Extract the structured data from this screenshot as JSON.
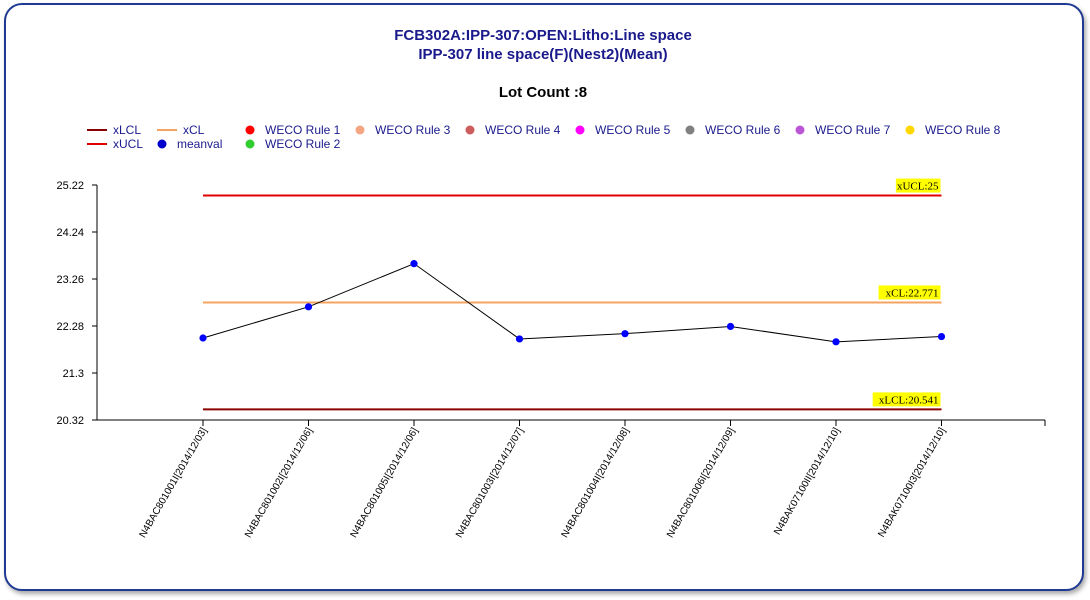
{
  "chart_data": {
    "type": "line",
    "title": "FCB302A:IPP-307:OPEN:Litho:Line space",
    "subtitle": "IPP-307 line space(F)(Nest2)(Mean)",
    "lot_count_label": "Lot Count :8",
    "categories": [
      "N4BAC801001I[2014/12/03]",
      "N4BAC801002I[2014/12/06]",
      "N4BAC801005I[2014/12/06]",
      "N4BAC801003I[2014/12/07]",
      "N4BAC801004I[2014/12/08]",
      "N4BAC801006I[2014/12/09]",
      "N4BAK07100II[2014/12/10]",
      "N4BAK07100I3[2014/12/10]"
    ],
    "series": [
      {
        "name": "meanval",
        "values": [
          22.03,
          22.68,
          23.58,
          22.01,
          22.12,
          22.27,
          21.95,
          22.06
        ]
      }
    ],
    "limits": {
      "xUCL": {
        "value": 25,
        "label": "xUCL:25"
      },
      "xCL": {
        "value": 22.771,
        "label": "xCL:22.771"
      },
      "xLCL": {
        "value": 20.541,
        "label": "xLCL:20.541"
      }
    },
    "ylim": [
      20.32,
      25.22
    ],
    "yticks": [
      "25.22",
      "24.24",
      "23.26",
      "22.28",
      "21.3",
      "20.32"
    ],
    "ytick_values": [
      25.22,
      24.24,
      23.26,
      22.28,
      21.3,
      20.32
    ],
    "legend": [
      {
        "label": "xLCL",
        "kind": "line",
        "color": "#8b0000"
      },
      {
        "label": "xCL",
        "kind": "line",
        "color": "#f4a460"
      },
      {
        "label": "WECO Rule 1",
        "kind": "dot",
        "color": "#ff0000"
      },
      {
        "label": "WECO Rule 3",
        "kind": "dot",
        "color": "#f4a582"
      },
      {
        "label": "WECO Rule 4",
        "kind": "dot",
        "color": "#cd5c5c"
      },
      {
        "label": "WECO Rule 5",
        "kind": "dot",
        "color": "#ff00ff"
      },
      {
        "label": "WECO Rule 6",
        "kind": "dot",
        "color": "#808080"
      },
      {
        "label": "WECO Rule 7",
        "kind": "dot",
        "color": "#ba55d3"
      },
      {
        "label": "WECO Rule 8",
        "kind": "dot",
        "color": "#ffd700"
      },
      {
        "label": "xUCL",
        "kind": "line",
        "color": "#e00000"
      },
      {
        "label": "meanval",
        "kind": "dot",
        "color": "#0000cc"
      },
      {
        "label": "WECO Rule 2",
        "kind": "dot",
        "color": "#32cd32"
      }
    ],
    "colors": {
      "xUCL": "#e00000",
      "xCL": "#f4a460",
      "xLCL": "#8b0000",
      "meanval_point": "#0000ff",
      "meanval_line": "#000000",
      "limit_label_bg": "#ffff00"
    },
    "legend_position": "top"
  }
}
